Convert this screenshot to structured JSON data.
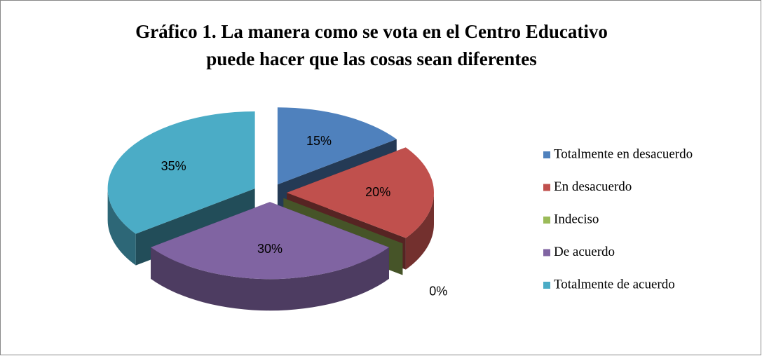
{
  "chart_data": {
    "type": "pie3d",
    "title": [
      "Gráfico 1. La manera como se vota en el Centro Educativo",
      "puede hacer que las cosas sean diferentes"
    ],
    "categories": [
      "Totalmente en  desacuerdo",
      "En desacuerdo",
      "Indeciso",
      "De acuerdo",
      "Totalmente de acuerdo"
    ],
    "values": [
      15,
      20,
      0,
      30,
      35
    ],
    "value_labels": [
      "15%",
      "20%",
      "0%",
      "30%",
      "35%"
    ],
    "colors": [
      "#4f81bd",
      "#c0504d",
      "#9bbb59",
      "#8064a2",
      "#4bacc6"
    ],
    "legend": "right"
  }
}
